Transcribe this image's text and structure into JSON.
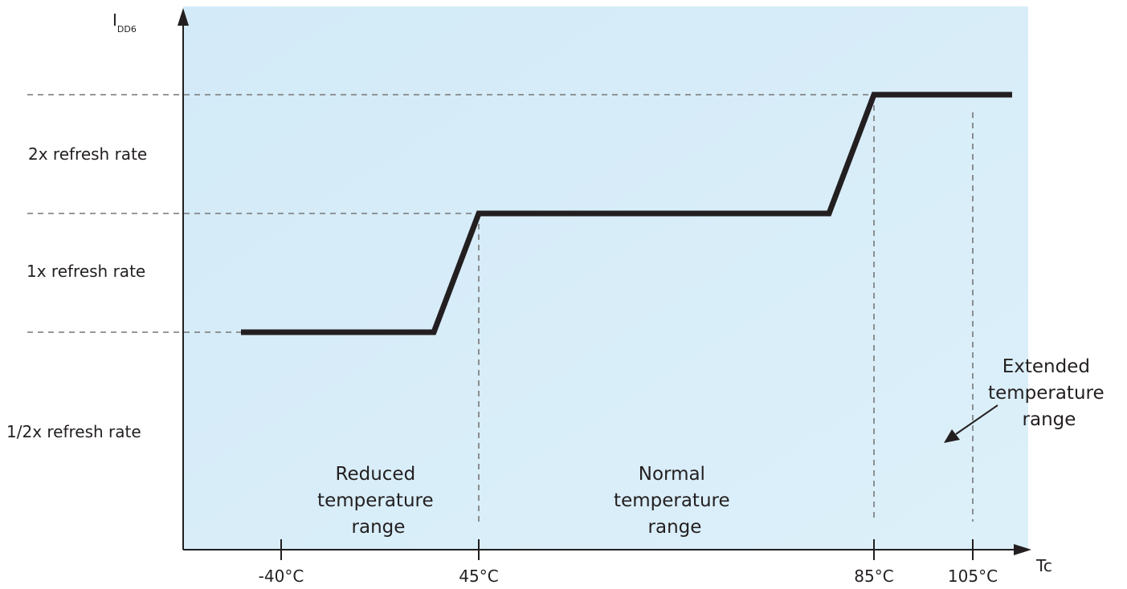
{
  "chart_data": {
    "type": "line",
    "title": "",
    "ylabel": {
      "main": "I",
      "sub": "DD6"
    },
    "xlabel": "Tc",
    "x_ticks": [
      "-40°C",
      "45°C",
      "85°C",
      "105°C"
    ],
    "y_levels": [
      "2x refresh rate",
      "1x refresh rate",
      "1/2x refresh rate"
    ],
    "regions": [
      {
        "name": "reduced",
        "lines": [
          "Reduced",
          "temperature",
          "range"
        ]
      },
      {
        "name": "normal",
        "lines": [
          "Normal",
          "temperature",
          "range"
        ]
      },
      {
        "name": "extended",
        "lines": [
          "Extended",
          "temperature",
          "range"
        ]
      }
    ],
    "colors": {
      "background": "#d6ecf8",
      "line": "#231f20",
      "guide": "#777777"
    }
  }
}
